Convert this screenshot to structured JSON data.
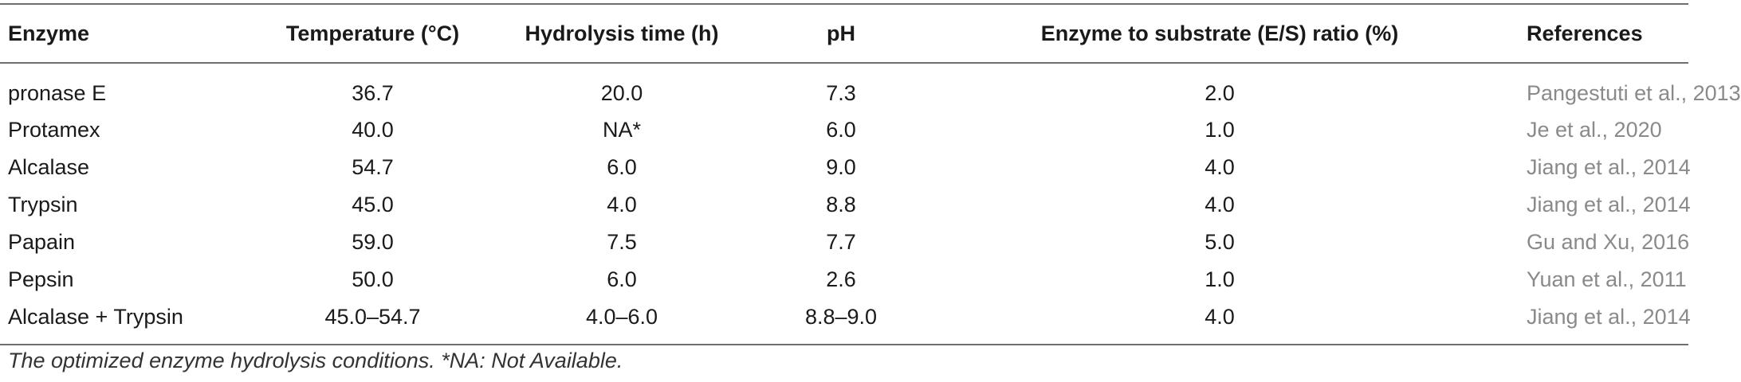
{
  "table": {
    "headers": [
      "Enzyme",
      "Temperature (°C)",
      "Hydrolysis time (h)",
      "pH",
      "Enzyme to substrate (E/S) ratio (%)",
      "References"
    ],
    "rows": [
      [
        "pronase E",
        "36.7",
        "20.0",
        "7.3",
        "2.0",
        "Pangestuti et al., 2013"
      ],
      [
        "Protamex",
        "40.0",
        "NA*",
        "6.0",
        "1.0",
        "Je et al., 2020"
      ],
      [
        "Alcalase",
        "54.7",
        "6.0",
        "9.0",
        "4.0",
        "Jiang et al., 2014"
      ],
      [
        "Trypsin",
        "45.0",
        "4.0",
        "8.8",
        "4.0",
        "Jiang et al., 2014"
      ],
      [
        "Papain",
        "59.0",
        "7.5",
        "7.7",
        "5.0",
        "Gu and Xu, 2016"
      ],
      [
        "Pepsin",
        "50.0",
        "6.0",
        "2.6",
        "1.0",
        "Yuan et al., 2011"
      ],
      [
        "Alcalase + Trypsin",
        "45.0–54.7",
        "4.0–6.0",
        "8.8–9.0",
        "4.0",
        "Jiang et al., 2014"
      ]
    ]
  },
  "footnote": "The optimized enzyme hydrolysis conditions. *NA: Not Available.",
  "colors": {
    "reference_text": "#8a8a8a",
    "rule_lines": "#6e6e6e"
  }
}
